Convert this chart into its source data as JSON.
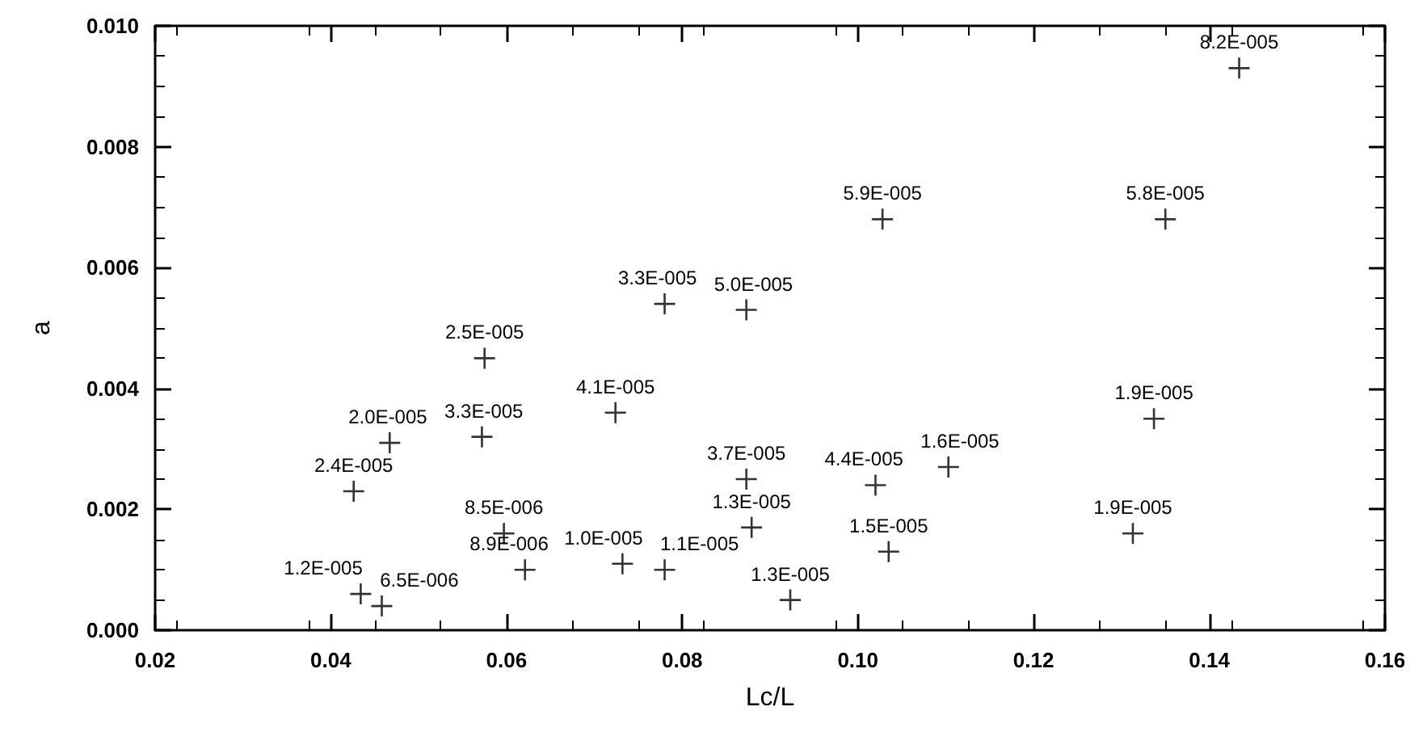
{
  "chart_data": {
    "type": "scatter",
    "xlabel": "Lc/L",
    "ylabel": "a",
    "xlim": [
      0.02,
      0.16
    ],
    "xticks": [
      {
        "value": 0.02,
        "label": "0.02"
      },
      {
        "value": 0.04,
        "label": "0.04"
      },
      {
        "value": 0.06,
        "label": "0.06"
      },
      {
        "value": 0.08,
        "label": "0.08"
      },
      {
        "value": 0.1,
        "label": "0.10"
      },
      {
        "value": 0.12,
        "label": "0.12"
      },
      {
        "value": 0.14,
        "label": "0.14"
      },
      {
        "value": 0.16,
        "label": "0.16"
      }
    ],
    "ylim": [
      0,
      0.01
    ],
    "yticks": [
      {
        "value": 0,
        "label": "0.000"
      },
      {
        "value": 0.002,
        "label": "0.002"
      },
      {
        "value": 0.004,
        "label": "0.004"
      },
      {
        "value": 0.006,
        "label": "0.006"
      },
      {
        "value": 0.008,
        "label": "0.008"
      },
      {
        "value": 0.01,
        "label": "0.010"
      }
    ],
    "marker": "cross",
    "grid": false,
    "series": [
      {
        "color": "#000000",
        "x": [
          0.1434,
          0.1028,
          0.135,
          0.1337,
          0.1313,
          0.1103,
          0.102,
          0.1035,
          0.0873,
          0.0879,
          0.0923,
          0.078,
          0.0873,
          0.0732,
          0.078,
          0.0724,
          0.0575,
          0.0572,
          0.0467,
          0.0426,
          0.0597,
          0.0621,
          0.0434,
          0.0458
        ],
        "values": [
          0.0093,
          0.0068,
          0.0068,
          0.0035,
          0.0016,
          0.0027,
          0.0024,
          0.0013,
          0.0025,
          0.0017,
          0.0005,
          0.0054,
          0.0053,
          0.0011,
          0.001,
          0.0036,
          0.0045,
          0.0032,
          0.0031,
          0.0023,
          0.0016,
          0.001,
          0.0006,
          0.0004
        ]
      }
    ],
    "annotations": [
      {
        "text": "8.2E-005",
        "x": 0.1434,
        "y": 0.0093
      },
      {
        "text": "5.9E-005",
        "x": 0.1028,
        "y": 0.0068
      },
      {
        "text": "5.8E-005",
        "x": 0.135,
        "y": 0.0068
      },
      {
        "text": "1.9E-005",
        "x": 0.1337,
        "y": 0.0035
      },
      {
        "text": "1.9E-005",
        "x": 0.1313,
        "y": 0.0016
      },
      {
        "text": "1.6E-005",
        "x": 0.1103,
        "y": 0.0027
      },
      {
        "text": "4.4E-005",
        "x": 0.102,
        "y": 0.0024
      },
      {
        "text": "1.5E-005",
        "x": 0.1035,
        "y": 0.0013
      },
      {
        "text": "3.7E-005",
        "x": 0.0873,
        "y": 0.0025
      },
      {
        "text": "1.3E-005",
        "x": 0.0879,
        "y": 0.0017
      },
      {
        "text": "1.3E-005",
        "x": 0.0923,
        "y": 0.0005
      },
      {
        "text": "3.3E-005",
        "x": 0.078,
        "y": 0.0054
      },
      {
        "text": "5.0E-005",
        "x": 0.0873,
        "y": 0.0053
      },
      {
        "text": "1.0E-005",
        "x": 0.0732,
        "y": 0.0011
      },
      {
        "text": "1.1E-005",
        "x": 0.078,
        "y": 0.001
      },
      {
        "text": "4.1E-005",
        "x": 0.0724,
        "y": 0.0036
      },
      {
        "text": "2.5E-005",
        "x": 0.0575,
        "y": 0.0045
      },
      {
        "text": "3.3E-005",
        "x": 0.0572,
        "y": 0.0032
      },
      {
        "text": "2.0E-005",
        "x": 0.0467,
        "y": 0.0031
      },
      {
        "text": "2.4E-005",
        "x": 0.0426,
        "y": 0.0023
      },
      {
        "text": "8.5E-006",
        "x": 0.0597,
        "y": 0.0016
      },
      {
        "text": "8.9E-006",
        "x": 0.0621,
        "y": 0.001
      },
      {
        "text": "1.2E-005",
        "x": 0.0434,
        "y": 0.0006
      },
      {
        "text": "6.5E-006",
        "x": 0.0458,
        "y": 0.0004
      }
    ]
  }
}
